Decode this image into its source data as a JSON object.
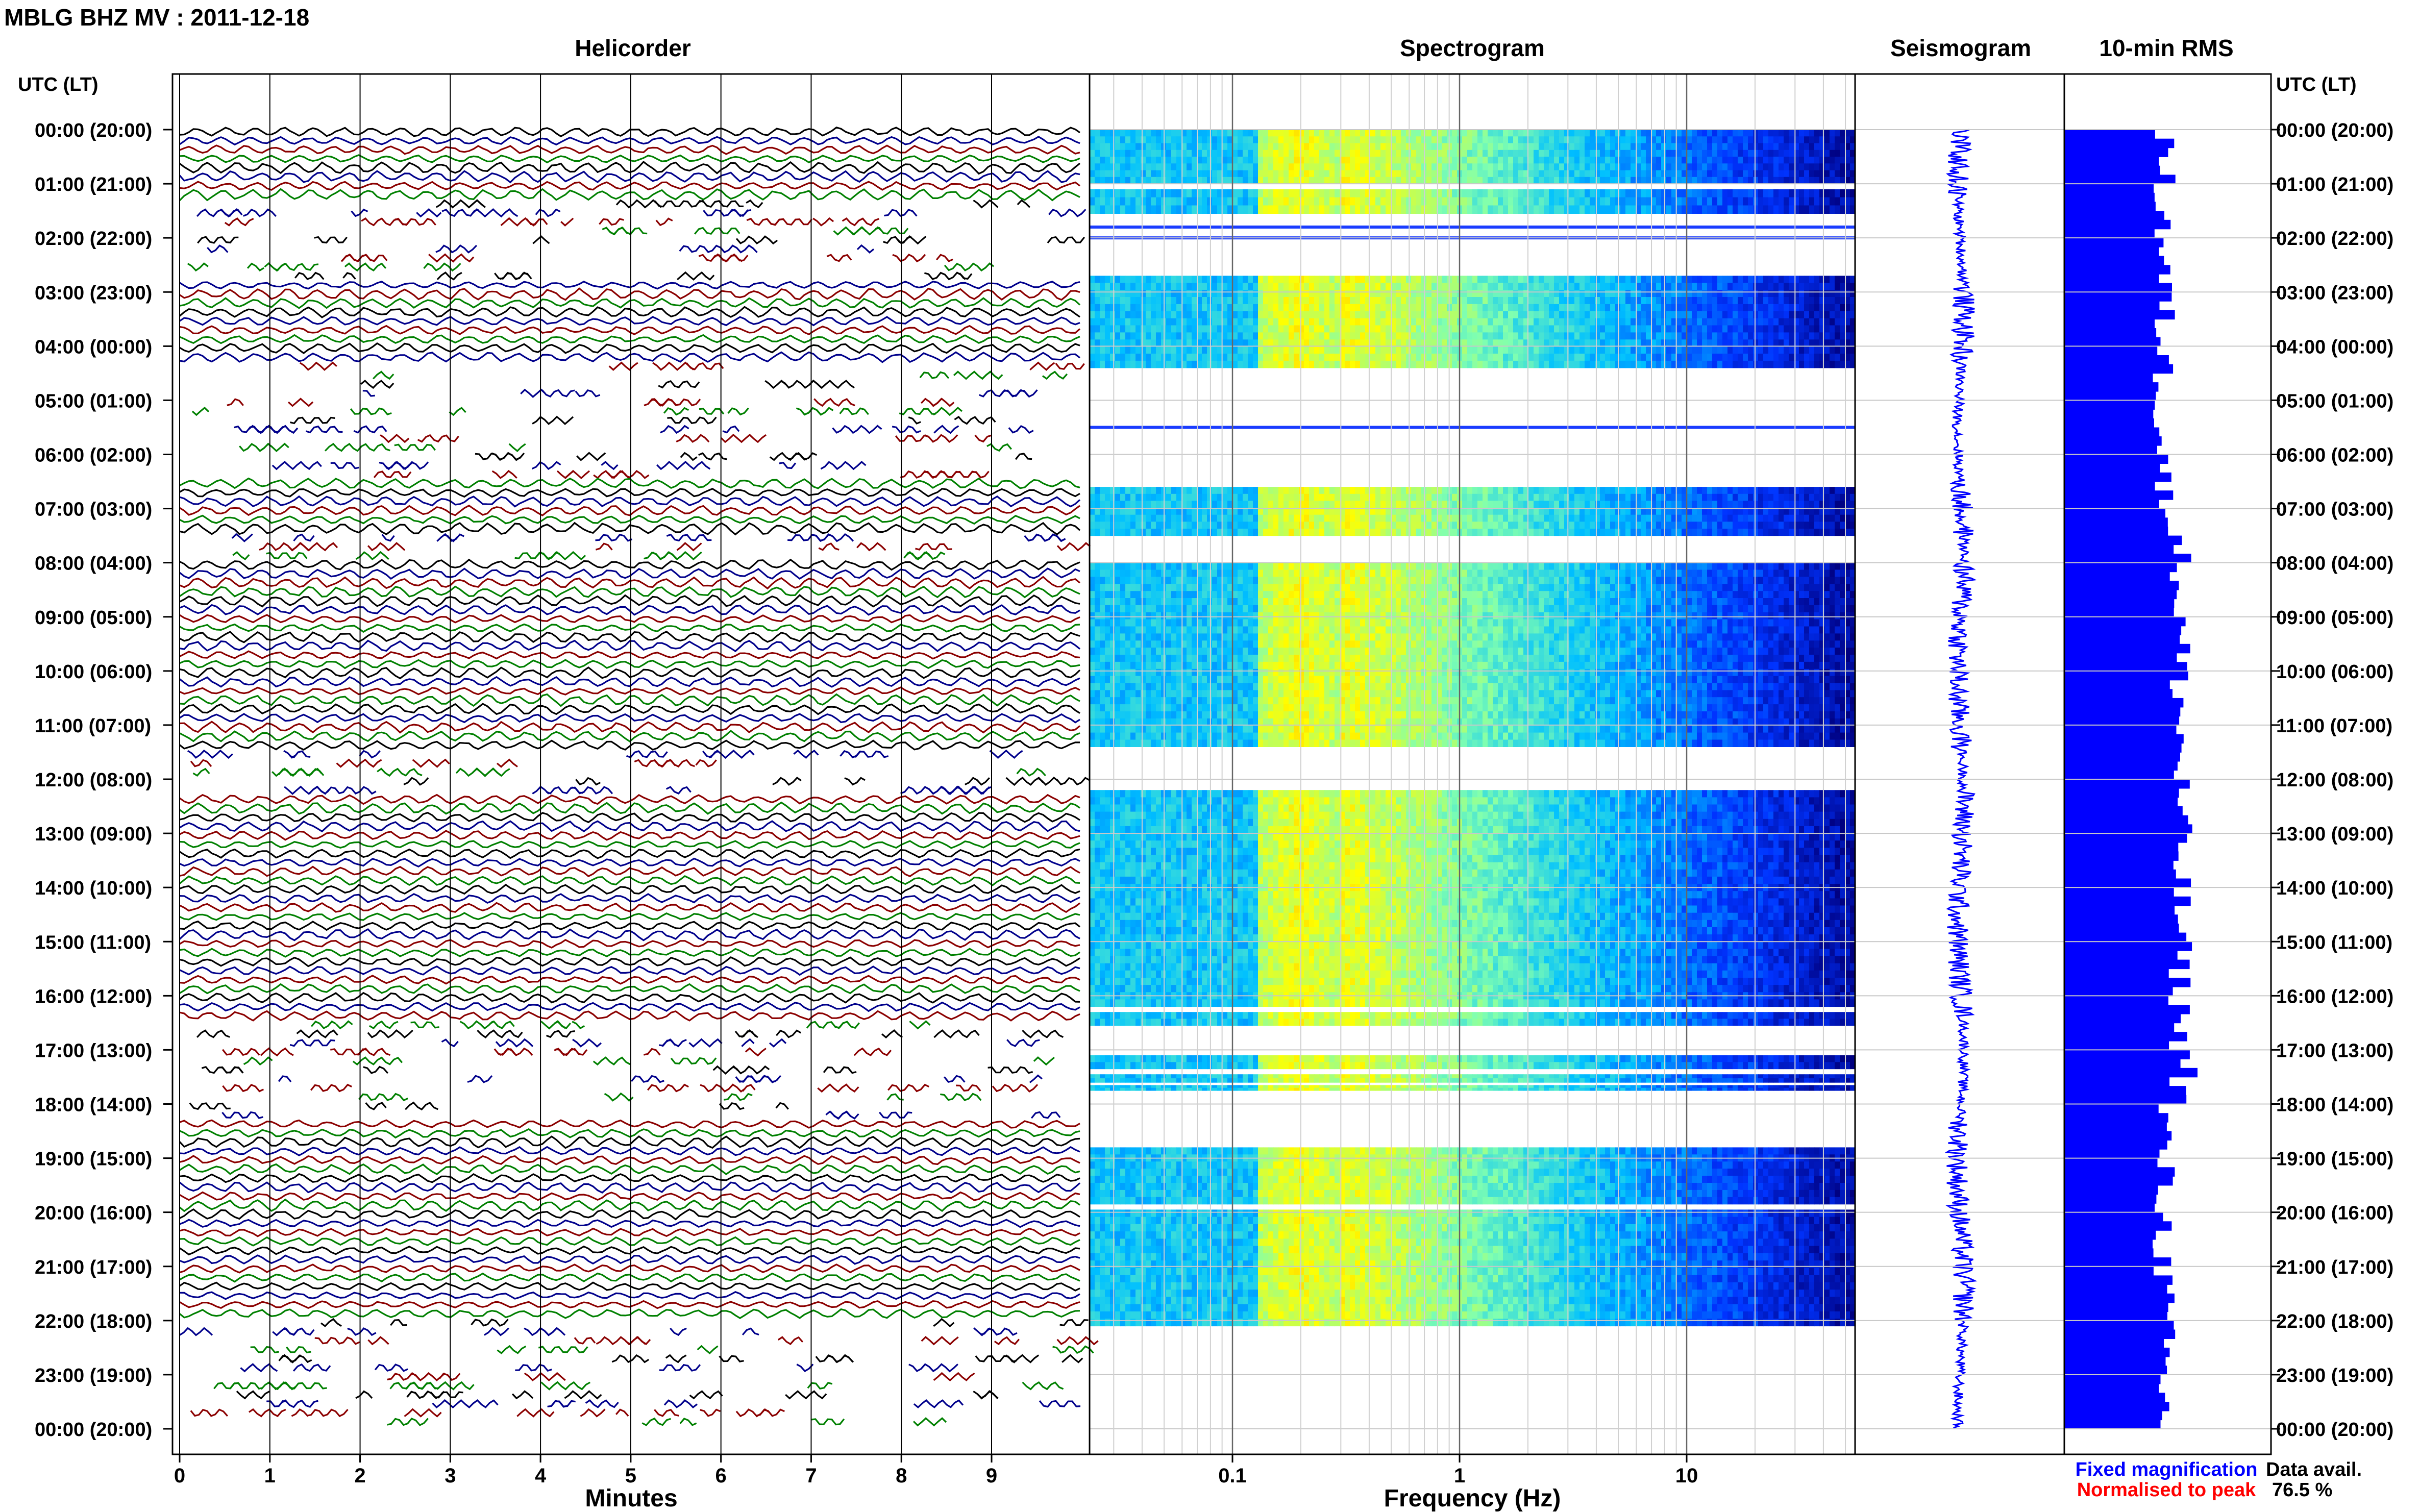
{
  "title": "MBLG BHZ MV : 2011-12-18",
  "panels": {
    "helicorder_title": "Helicorder",
    "spectrogram_title": "Spectrogram",
    "seismogram_title": "Seismogram",
    "rms_title": "10-min RMS"
  },
  "axis_header_left": "UTC (LT)",
  "axis_header_right": "UTC (LT)",
  "time_labels": [
    "00:00 (20:00)",
    "01:00 (21:00)",
    "02:00 (22:00)",
    "03:00 (23:00)",
    "04:00 (00:00)",
    "05:00 (01:00)",
    "06:00 (02:00)",
    "07:00 (03:00)",
    "08:00 (04:00)",
    "09:00 (05:00)",
    "10:00 (06:00)",
    "11:00 (07:00)",
    "12:00 (08:00)",
    "13:00 (09:00)",
    "14:00 (10:00)",
    "15:00 (11:00)",
    "16:00 (12:00)",
    "17:00 (13:00)",
    "18:00 (14:00)",
    "19:00 (15:00)",
    "20:00 (16:00)",
    "21:00 (17:00)",
    "22:00 (18:00)",
    "23:00 (19:00)",
    "00:00 (20:00)"
  ],
  "helicorder_x_ticks": [
    "0",
    "1",
    "2",
    "3",
    "4",
    "5",
    "6",
    "7",
    "8",
    "9"
  ],
  "helicorder_xlabel": "Minutes",
  "spectrogram_x_ticks": [
    "0.1",
    "1",
    "10"
  ],
  "spectrogram_xlabel": "Frequency (Hz)",
  "legend": {
    "fixed": "Fixed magnification",
    "normalised": "Normalised to peak",
    "fixed_color": "#0000ff",
    "normalised_color": "#ff0000"
  },
  "data_avail_label": "Data avail.",
  "data_avail_value": "76.5 %",
  "chart_data": [
    {
      "type": "line",
      "panel": "Helicorder",
      "xlabel": "Minutes",
      "xlim": [
        0,
        10
      ],
      "trace_colors": [
        "#000000",
        "#00008b",
        "#8b0000",
        "#008000"
      ],
      "gaps_utc_hours": [
        [
          1.2,
          2.8
        ],
        [
          4.3,
          6.5
        ],
        [
          7.5,
          8.0
        ],
        [
          11.4,
          12.2
        ],
        [
          16.4,
          18.3
        ],
        [
          22.0,
          24.0
        ]
      ]
    },
    {
      "type": "heatmap",
      "panel": "Spectrogram",
      "xlabel": "Frequency (Hz)",
      "xscale": "log",
      "xlim": [
        0.025,
        50
      ],
      "peak_band_hz": [
        0.15,
        0.3
      ],
      "colormap": [
        "#000080",
        "#0033ff",
        "#00c0ff",
        "#80ffb0",
        "#ffff00",
        "#ff8000"
      ],
      "segments_utc_hours": [
        [
          0.0,
          1.0
        ],
        [
          1.1,
          1.55
        ],
        [
          2.7,
          4.4
        ],
        [
          6.6,
          7.5
        ],
        [
          8.0,
          11.4
        ],
        [
          12.2,
          16.2
        ],
        [
          16.3,
          16.55
        ],
        [
          17.1,
          17.35
        ],
        [
          17.45,
          17.6
        ],
        [
          17.65,
          17.75
        ],
        [
          18.8,
          19.85
        ],
        [
          19.95,
          22.1
        ]
      ],
      "gap_lines_utc_hours": [
        1.8,
        2.0,
        5.5
      ]
    },
    {
      "type": "line",
      "panel": "Seismogram",
      "color": "#0000ff",
      "xlim_utc_hours": [
        0,
        24
      ]
    },
    {
      "type": "bar",
      "panel": "10-min RMS",
      "color": "#0000ff",
      "orientation": "horizontal",
      "interval_minutes": 10,
      "xlim": [
        0,
        1
      ]
    }
  ]
}
